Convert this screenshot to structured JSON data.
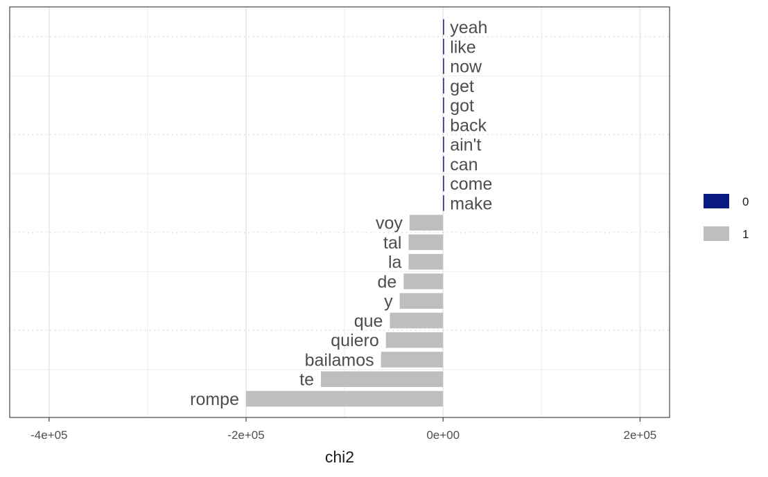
{
  "chart_data": {
    "type": "bar",
    "orientation": "horizontal",
    "xlabel": "chi2",
    "ylabel": "",
    "xlim": [
      -440000,
      230000
    ],
    "x_ticks": [
      -400000,
      -200000,
      0,
      200000
    ],
    "x_tick_labels": [
      "-4e+05",
      "-2e+05",
      "0e+00",
      "2e+05"
    ],
    "grid": true,
    "legend_position": "right",
    "legend": [
      {
        "key": "0",
        "label": "0",
        "color": "#0a1a85"
      },
      {
        "key": "1",
        "label": "1",
        "color": "#bebebe"
      }
    ],
    "categories": [
      "yeah",
      "like",
      "now",
      "get",
      "got",
      "back",
      "ain't",
      "can",
      "come",
      "make",
      "voy",
      "tal",
      "la",
      "de",
      "y",
      "que",
      "quiero",
      "bailamos",
      "te",
      "rompe"
    ],
    "values": [
      1000,
      900,
      700,
      700,
      700,
      600,
      500,
      500,
      400,
      400,
      -34000,
      -35000,
      -35000,
      -40000,
      -44000,
      -54000,
      -58000,
      -63000,
      -124000,
      -200000
    ],
    "groups": [
      "0",
      "0",
      "0",
      "0",
      "0",
      "0",
      "0",
      "0",
      "0",
      "0",
      "1",
      "1",
      "1",
      "1",
      "1",
      "1",
      "1",
      "1",
      "1",
      "1"
    ]
  }
}
